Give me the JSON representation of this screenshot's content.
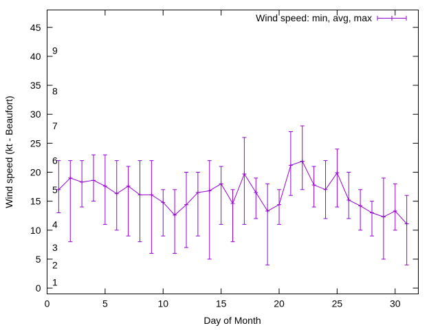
{
  "chart_data": {
    "type": "line",
    "xlabel": "Day of Month",
    "ylabel": "Wind speed (kt - Beaufort)",
    "xlim": [
      0,
      32
    ],
    "ylim": [
      -1,
      48
    ],
    "x_ticks": [
      0,
      5,
      10,
      15,
      20,
      25,
      30
    ],
    "y_ticks": [
      0,
      5,
      10,
      15,
      20,
      25,
      30,
      35,
      40,
      45
    ],
    "grid": false,
    "legend_position": "top-right",
    "beaufort_labels": [
      {
        "label": "1",
        "y": 1
      },
      {
        "label": "2",
        "y": 4
      },
      {
        "label": "3",
        "y": 7
      },
      {
        "label": "4",
        "y": 11
      },
      {
        "label": "5",
        "y": 17
      },
      {
        "label": "6",
        "y": 22
      },
      {
        "label": "7",
        "y": 28
      },
      {
        "label": "8",
        "y": 34
      },
      {
        "label": "9",
        "y": 41
      }
    ],
    "series": [
      {
        "name": "Wind speed: min, avg, max",
        "color": "#9400d3",
        "x": [
          1,
          2,
          3,
          4,
          5,
          6,
          7,
          8,
          9,
          10,
          11,
          12,
          13,
          14,
          15,
          16,
          17,
          18,
          19,
          20,
          21,
          22,
          23,
          24,
          25,
          26,
          27,
          28,
          29,
          30,
          31
        ],
        "avg": [
          17,
          19,
          18.3,
          18.6,
          17.6,
          16.3,
          17.6,
          16.1,
          16.1,
          14.8,
          12.6,
          14.4,
          16.5,
          16.8,
          18,
          14.6,
          19.7,
          16.5,
          13.3,
          14.4,
          21.2,
          21.9,
          17.8,
          17,
          19.9,
          15.2,
          14.2,
          13,
          12.3,
          13.3,
          11.1
        ],
        "min": [
          13,
          8,
          14,
          15,
          11,
          10,
          9,
          8,
          6,
          9,
          6,
          7,
          9,
          5,
          11,
          8,
          11,
          12,
          4,
          11,
          16,
          17,
          14,
          12,
          14,
          12,
          10,
          9,
          5,
          10,
          4
        ],
        "max": [
          22,
          22,
          22,
          23,
          23,
          22,
          21,
          22,
          22,
          17,
          17,
          20,
          20,
          22,
          21,
          17,
          26,
          19,
          18,
          17,
          27,
          28,
          21,
          22,
          24,
          20,
          17,
          15,
          19,
          18,
          16
        ]
      }
    ]
  }
}
